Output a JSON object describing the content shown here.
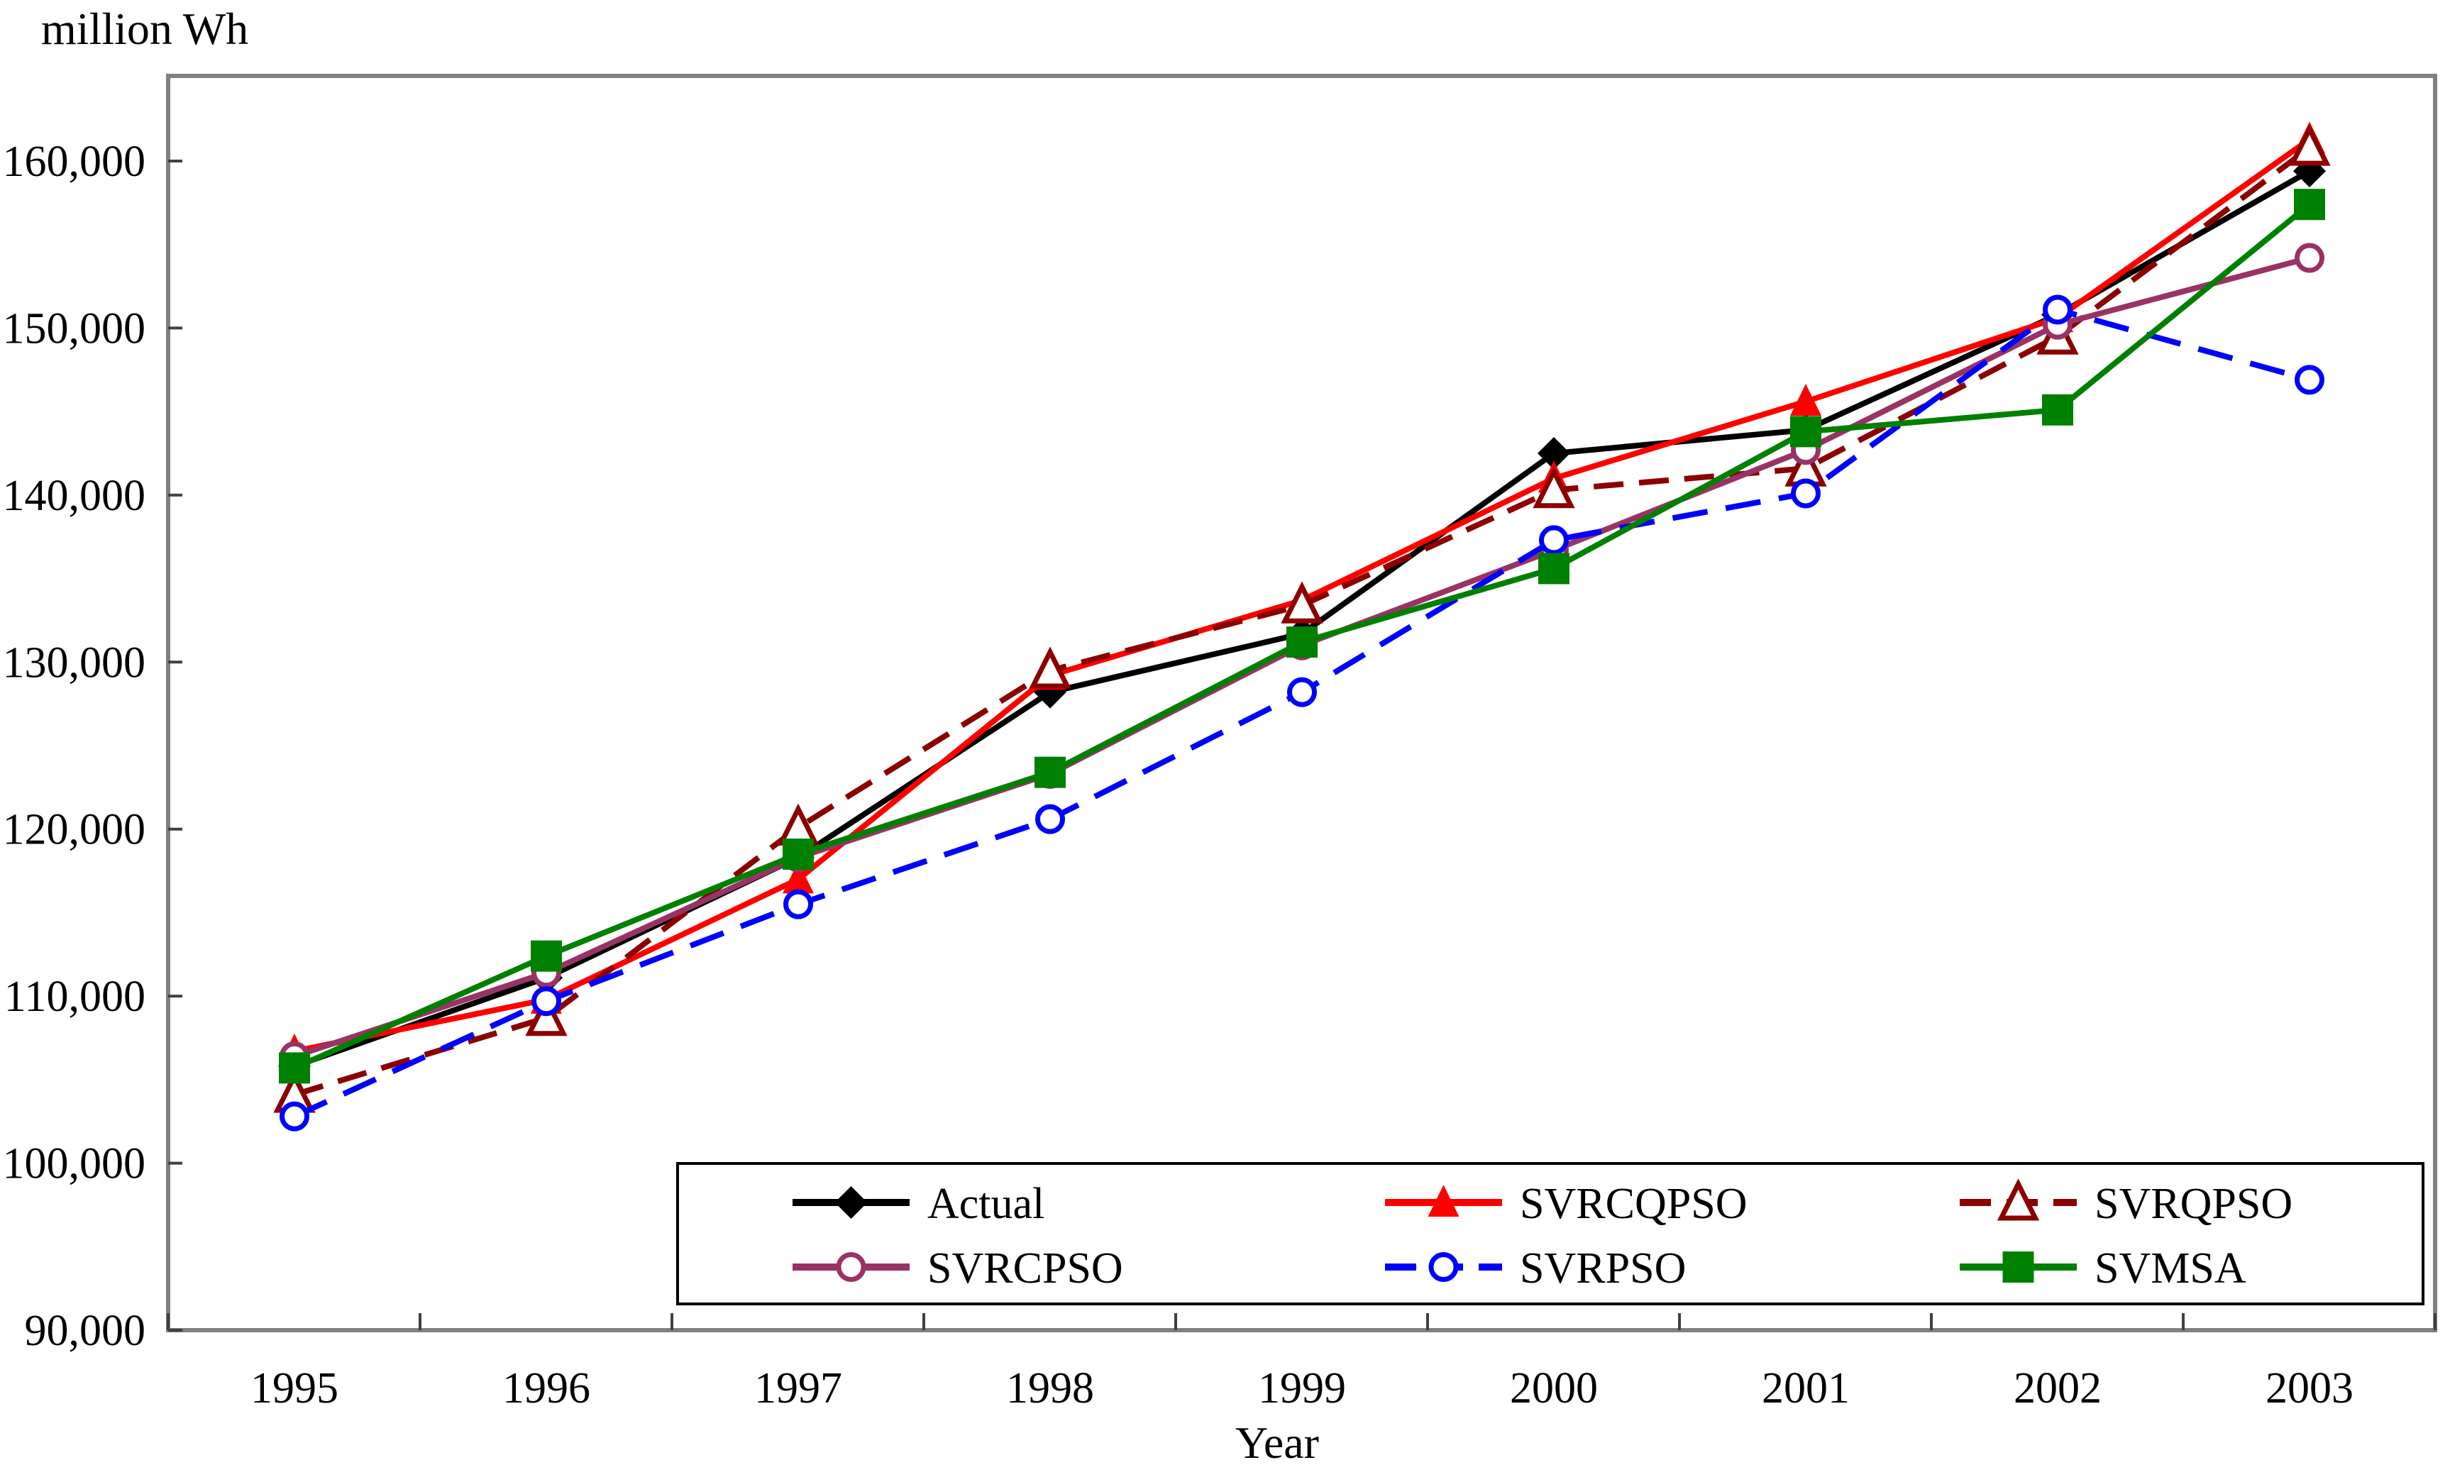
{
  "chart_data": {
    "type": "line",
    "title": "million Wh",
    "xlabel": "Year",
    "ylabel": "",
    "categories": [
      "1995",
      "1996",
      "1997",
      "1998",
      "1999",
      "2000",
      "2001",
      "2002",
      "2003"
    ],
    "y_axis": {
      "min": 90000,
      "max": 165000,
      "tick_step": 10000,
      "tick_values": [
        90000,
        100000,
        110000,
        120000,
        130000,
        140000,
        150000,
        160000
      ],
      "tick_labels": [
        "90,000",
        "100,000",
        "110,000",
        "120,000",
        "130,000",
        "140,000",
        "150,000",
        "160,000"
      ]
    },
    "grid": false,
    "legend_position": "bottom-inside-box",
    "legend_rows": [
      [
        0,
        1,
        2
      ],
      [
        3,
        4,
        5
      ]
    ],
    "series": [
      {
        "name": "Actual",
        "color": "#000000",
        "line_style": "solid",
        "marker": "diamond-filled",
        "values": [
          105800,
          111100,
          118300,
          128200,
          131700,
          142500,
          143900,
          150800,
          159400
        ]
      },
      {
        "name": "SVRCQPSO",
        "color": "#ff0000",
        "line_style": "solid",
        "marker": "triangle-filled",
        "values": [
          106700,
          109800,
          117000,
          129200,
          133700,
          141000,
          145600,
          150600,
          161300
        ]
      },
      {
        "name": "SVRQPSO",
        "color": "#8b0000",
        "line_style": "dashed",
        "marker": "triangle-open",
        "values": [
          104100,
          108700,
          120100,
          129500,
          133400,
          140300,
          141600,
          149500,
          160800
        ]
      },
      {
        "name": "SVRCPSO",
        "color": "#993366",
        "line_style": "solid",
        "marker": "circle-open",
        "values": [
          106400,
          111400,
          118300,
          123300,
          131000,
          136700,
          142700,
          150200,
          154200
        ]
      },
      {
        "name": "SVRPSO",
        "color": "#0000ff",
        "line_style": "dashed",
        "marker": "circle-open",
        "values": [
          102800,
          109700,
          115500,
          120600,
          128200,
          137300,
          140100,
          151100,
          146900
        ]
      },
      {
        "name": "SVMSA",
        "color": "#008000",
        "line_style": "solid",
        "marker": "square-filled",
        "values": [
          105700,
          112400,
          118500,
          123400,
          131200,
          135600,
          143800,
          145100,
          157400
        ]
      }
    ],
    "colors": {
      "plot_border": "#808080",
      "tick": "#404040",
      "text": "#000000",
      "legend_border": "#000000",
      "background": "#ffffff"
    }
  }
}
